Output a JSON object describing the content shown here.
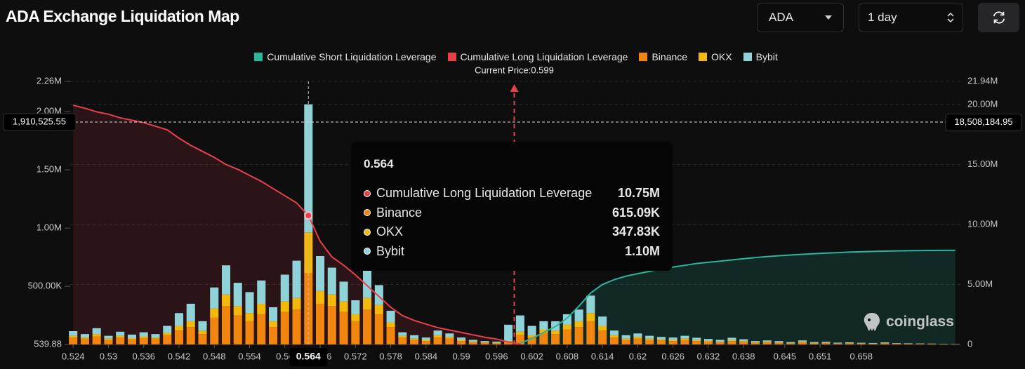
{
  "chart_data": {
    "type": "bar",
    "title": "ADA Exchange Liquidation Map",
    "controls": {
      "symbol": "ADA",
      "interval": "1 day"
    },
    "watermark": "coinglass",
    "x": [
      0.524,
      0.526,
      0.528,
      0.53,
      0.532,
      0.534,
      0.536,
      0.538,
      0.54,
      0.542,
      0.544,
      0.546,
      0.548,
      0.55,
      0.552,
      0.554,
      0.556,
      0.558,
      0.56,
      0.562,
      0.564,
      0.566,
      0.568,
      0.57,
      0.572,
      0.574,
      0.576,
      0.578,
      0.58,
      0.582,
      0.584,
      0.586,
      0.588,
      0.59,
      0.592,
      0.594,
      0.596,
      0.598,
      0.6,
      0.602,
      0.604,
      0.606,
      0.608,
      0.61,
      0.612,
      0.614,
      0.616,
      0.618,
      0.62,
      0.622,
      0.624,
      0.626,
      0.628,
      0.63,
      0.632,
      0.634,
      0.636,
      0.638,
      0.64,
      0.642,
      0.644,
      0.646,
      0.648,
      0.65,
      0.652,
      0.654,
      0.656,
      0.658,
      0.66,
      0.662,
      0.664,
      0.666,
      0.668,
      0.67,
      0.672,
      0.674
    ],
    "xlim": [
      0.5235,
      0.6745
    ],
    "xticks": [
      0.524,
      0.53,
      0.536,
      0.542,
      0.548,
      0.554,
      0.56,
      0.566,
      0.572,
      0.578,
      0.584,
      0.59,
      0.596,
      0.602,
      0.608,
      0.614,
      0.62,
      0.626,
      0.632,
      0.638,
      0.645,
      0.651,
      0.658
    ],
    "ylim": [
      539.88,
      2260000
    ],
    "yticks": [
      539.88,
      {
        "value": 500000,
        "label": "500.00K"
      },
      {
        "value": 1000000,
        "label": "1.00M"
      },
      {
        "value": 1500000,
        "label": "1.50M"
      },
      {
        "value": 2000000,
        "label": "2.00M"
      },
      {
        "value": 2260000,
        "label": "2.26M"
      }
    ],
    "y2lim": [
      0,
      21940000
    ],
    "y2ticks": [
      0,
      {
        "value": 5000000,
        "label": "5.00M"
      },
      {
        "value": 10000000,
        "label": "10.00M"
      },
      {
        "value": 15000000,
        "label": "15.00M"
      },
      {
        "value": 20000000,
        "label": "20.00M"
      },
      {
        "value": 21940000,
        "label": "21.94M"
      }
    ],
    "grid": true,
    "series": [
      {
        "name": "Cumulative Short Liquidation Leverage",
        "type": "line",
        "axis": "y2",
        "color": "#2bb59a",
        "values": [
          null,
          null,
          null,
          null,
          null,
          null,
          null,
          null,
          null,
          null,
          null,
          null,
          null,
          null,
          null,
          null,
          null,
          null,
          null,
          null,
          null,
          null,
          null,
          null,
          null,
          null,
          null,
          null,
          null,
          null,
          null,
          null,
          null,
          null,
          null,
          null,
          null,
          null,
          100000,
          500000,
          1000000,
          1500000,
          2200000,
          3200000,
          4300000,
          5000000,
          5400000,
          5700000,
          5900000,
          6100000,
          6300000,
          6450000,
          6600000,
          6750000,
          6850000,
          6950000,
          7050000,
          7150000,
          7250000,
          7330000,
          7400000,
          7460000,
          7520000,
          7570000,
          7620000,
          7660000,
          7700000,
          7730000,
          7760000,
          7780000,
          7800000,
          7820000,
          7830000,
          7840000,
          7850000,
          7850000
        ]
      },
      {
        "name": "Cumulative Long Liquidation Leverage",
        "type": "line",
        "axis": "y2",
        "color": "#e8404a",
        "values": [
          19950000,
          19700000,
          19400000,
          19200000,
          18900000,
          18700000,
          18500000,
          18200000,
          17900000,
          17200000,
          16600000,
          16100000,
          15600000,
          15000000,
          14600000,
          14100000,
          13600000,
          13000000,
          12400000,
          11800000,
          10750000,
          8600000,
          7300000,
          6600000,
          5800000,
          4900000,
          4000000,
          3100000,
          2400000,
          2000000,
          1700000,
          1400000,
          1200000,
          1000000,
          800000,
          600000,
          450000,
          200000,
          50000,
          null,
          null,
          null,
          null,
          null,
          null,
          null,
          null,
          null,
          null,
          null,
          null,
          null,
          null,
          null,
          null,
          null,
          null,
          null,
          null,
          null,
          null,
          null,
          null,
          null,
          null,
          null,
          null,
          null,
          null,
          null,
          null,
          null,
          null,
          null,
          null,
          null
        ]
      },
      {
        "name": "Binance",
        "type": "bar",
        "color": "#f0850f",
        "values": [
          60000,
          50000,
          70000,
          40000,
          60000,
          45000,
          55000,
          50000,
          80000,
          120000,
          150000,
          90000,
          230000,
          330000,
          250000,
          200000,
          260000,
          150000,
          280000,
          300000,
          615090,
          350000,
          330000,
          280000,
          200000,
          300000,
          260000,
          150000,
          60000,
          40000,
          30000,
          60000,
          50000,
          30000,
          20000,
          15000,
          10000,
          20000,
          80000,
          60000,
          100000,
          90000,
          130000,
          150000,
          200000,
          120000,
          60000,
          40000,
          50000,
          40000,
          35000,
          30000,
          40000,
          30000,
          25000,
          20000,
          30000,
          25000,
          15000,
          20000,
          15000,
          10000,
          20000,
          10000,
          12000,
          8000,
          10000,
          8000,
          6000,
          10000,
          6000,
          5000,
          5000,
          4000,
          3000,
          2000
        ]
      },
      {
        "name": "OKX",
        "type": "bar",
        "color": "#f2b80c",
        "values": [
          15000,
          10000,
          20000,
          10000,
          15000,
          10000,
          15000,
          10000,
          20000,
          40000,
          50000,
          30000,
          80000,
          100000,
          80000,
          70000,
          90000,
          50000,
          90000,
          100000,
          347830,
          110000,
          100000,
          90000,
          60000,
          100000,
          80000,
          40000,
          15000,
          10000,
          10000,
          20000,
          15000,
          10000,
          5000,
          5000,
          5000,
          10000,
          30000,
          20000,
          30000,
          30000,
          40000,
          50000,
          70000,
          40000,
          20000,
          10000,
          15000,
          10000,
          10000,
          10000,
          10000,
          8000,
          8000,
          5000,
          8000,
          5000,
          5000,
          5000,
          5000,
          3000,
          5000,
          3000,
          3000,
          2000,
          3000,
          2000,
          2000,
          2000,
          2000,
          1000,
          1000,
          1000,
          1000,
          1000
        ]
      },
      {
        "name": "Bybit",
        "type": "bar",
        "color": "#8fd3d8",
        "values": [
          40000,
          30000,
          50000,
          25000,
          35000,
          30000,
          35000,
          30000,
          60000,
          110000,
          150000,
          80000,
          180000,
          250000,
          200000,
          180000,
          200000,
          120000,
          230000,
          320000,
          1100000,
          300000,
          230000,
          170000,
          120000,
          250000,
          170000,
          100000,
          30000,
          30000,
          20000,
          40000,
          30000,
          20000,
          15000,
          10000,
          10000,
          140000,
          140000,
          80000,
          70000,
          80000,
          90000,
          100000,
          150000,
          80000,
          40000,
          30000,
          30000,
          25000,
          20000,
          20000,
          25000,
          20000,
          15000,
          15000,
          20000,
          15000,
          10000,
          10000,
          10000,
          8000,
          10000,
          8000,
          8000,
          6000,
          6000,
          5000,
          5000,
          6000,
          4000,
          4000,
          3000,
          3000,
          2000,
          2000
        ]
      }
    ],
    "annotations": [
      {
        "text": "Current Price:0.599",
        "x": 0.599,
        "color": "#e8404a"
      }
    ],
    "crosshair": {
      "y": {
        "value": 1910525.55,
        "label": "1,910,525.55"
      },
      "y2": {
        "value": 18508184.95,
        "label": "18,508,184.95"
      }
    },
    "tooltip": {
      "x": 0.564,
      "labels": [
        "10.75M",
        "615.09K",
        "347.83K",
        "1.10M"
      ]
    }
  }
}
